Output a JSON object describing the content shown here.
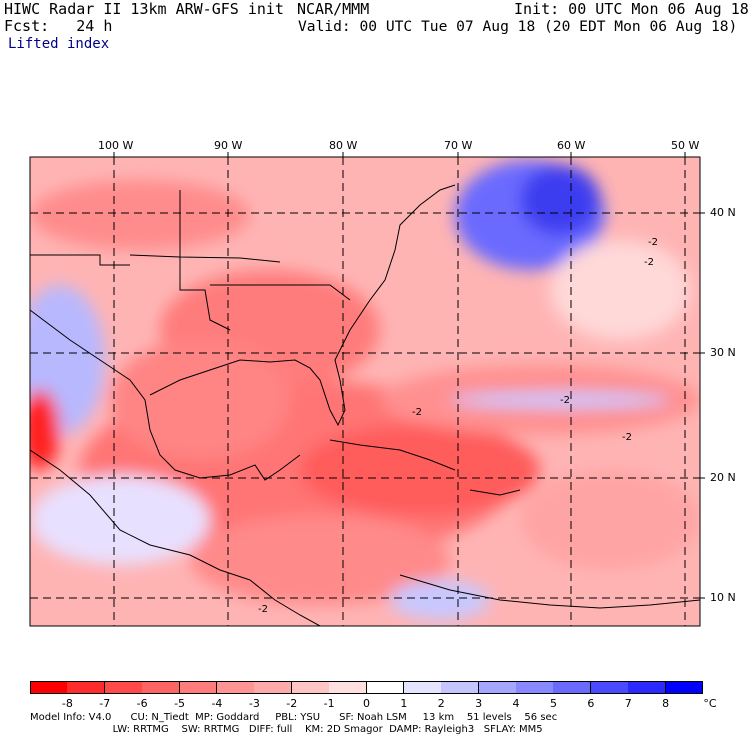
{
  "header": {
    "title_left": "HIWC Radar II 13km ARW-GFS init",
    "title_center": "NCAR/MMM",
    "init": "Init: 00 UTC Mon 06 Aug 18",
    "fcst": "Fcst:   24 h",
    "valid": "Valid: 00 UTC Tue 07 Aug 18 (20 EDT Mon 06 Aug 18)",
    "field": "Lifted index"
  },
  "map": {
    "lon_labels": [
      "100 W",
      "90 W",
      "80 W",
      "70 W",
      "60 W",
      "50 W"
    ],
    "lat_labels": [
      "40 N",
      "30 N",
      "20 N",
      "10 N"
    ],
    "contour_labels": [
      "-2",
      "-2",
      "-2",
      "-2",
      "-2",
      "-2"
    ]
  },
  "colorbar": {
    "unit": "°C",
    "ticks": [
      "-8",
      "-7",
      "-6",
      "-5",
      "-4",
      "-3",
      "-2",
      "-1",
      "0",
      "1",
      "2",
      "3",
      "4",
      "5",
      "6",
      "7",
      "8"
    ],
    "colors": [
      "#ff0000",
      "#ff2c2c",
      "#ff4a4a",
      "#ff6464",
      "#ff7c7c",
      "#ff9494",
      "#ffaaaa",
      "#ffc4c4",
      "#ffe0e0",
      "#ffffff",
      "#e4e4ff",
      "#c4c4ff",
      "#a6a6ff",
      "#8888ff",
      "#6a6aff",
      "#4a4aff",
      "#2a2aff",
      "#0000ff"
    ]
  },
  "footer": {
    "line1": "Model Info: V4.0      CU: N_Tiedt  MP: Goddard     PBL: YSU      SF: Noah LSM     13 km    51 levels    56 sec",
    "line2": "                          LW: RRTMG    SW: RRTMG   DIFF: full    KM: 2D Smagor  DAMP: Rayleigh3   SFLAY: MM5"
  }
}
